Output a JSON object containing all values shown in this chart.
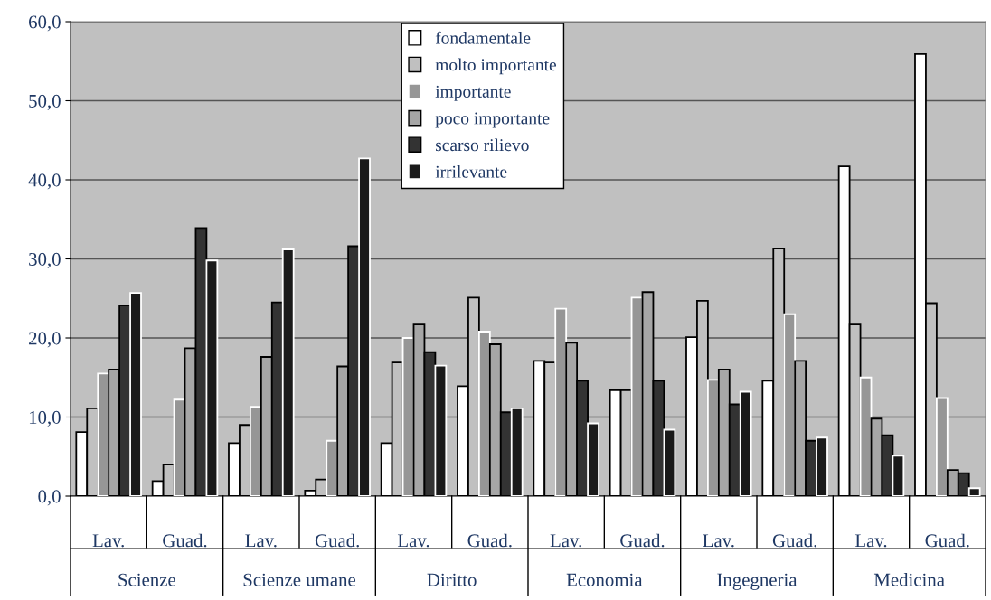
{
  "chart_data": {
    "type": "bar",
    "categories": [
      "Lav.",
      "Guad.",
      "Lav.",
      "Guad.",
      "Lav.",
      "Guad.",
      "Lav.",
      "Guad.",
      "Lav.",
      "Guad.",
      "Lav.",
      "Guad."
    ],
    "annotations": [
      "Scienze",
      "Scienze umane",
      "Diritto",
      "Economia",
      "Ingegneria",
      "Medicina"
    ],
    "series": [
      {
        "name": "fondamentale",
        "color": "#ffffff",
        "values": [
          8.1,
          1.9,
          6.7,
          0.7,
          6.7,
          13.9,
          17.1,
          13.4,
          20.1,
          14.6,
          41.7,
          55.9
        ]
      },
      {
        "name": "molto importante",
        "color": "#c0c0c0",
        "values": [
          11.1,
          4.0,
          9.0,
          2.1,
          16.9,
          25.1,
          16.9,
          13.4,
          24.7,
          31.3,
          21.7,
          24.4
        ]
      },
      {
        "name": "importante",
        "color": "#969696",
        "values": [
          15.5,
          12.2,
          11.3,
          7.0,
          20.0,
          20.8,
          23.7,
          25.1,
          14.7,
          23.0,
          15.0,
          12.4
        ]
      },
      {
        "name": "poco importante",
        "color": "#a6a6a6",
        "values": [
          16.0,
          18.7,
          17.6,
          16.4,
          21.7,
          19.2,
          19.4,
          25.8,
          16.0,
          17.1,
          9.8,
          3.3
        ]
      },
      {
        "name": "scarso rilievo",
        "color": "#333333",
        "values": [
          24.1,
          33.9,
          24.5,
          31.6,
          18.2,
          10.6,
          14.6,
          14.6,
          11.6,
          7.0,
          7.7,
          2.9
        ]
      },
      {
        "name": "irrilevante",
        "color": "#1a1a1a",
        "values": [
          25.7,
          29.8,
          31.2,
          42.7,
          16.5,
          11.1,
          9.2,
          8.4,
          13.2,
          7.4,
          5.1,
          1.0
        ]
      }
    ],
    "ylim": [
      0,
      60
    ],
    "yticks": [
      {
        "value": 0,
        "label": "0,0"
      },
      {
        "value": 10,
        "label": "10,0"
      },
      {
        "value": 20,
        "label": "20,0"
      },
      {
        "value": 30,
        "label": "30,0"
      },
      {
        "value": 40,
        "label": "40,0"
      },
      {
        "value": 50,
        "label": "50,0"
      },
      {
        "value": 60,
        "label": "60,0"
      }
    ],
    "grid": "y",
    "legend": "top"
  }
}
